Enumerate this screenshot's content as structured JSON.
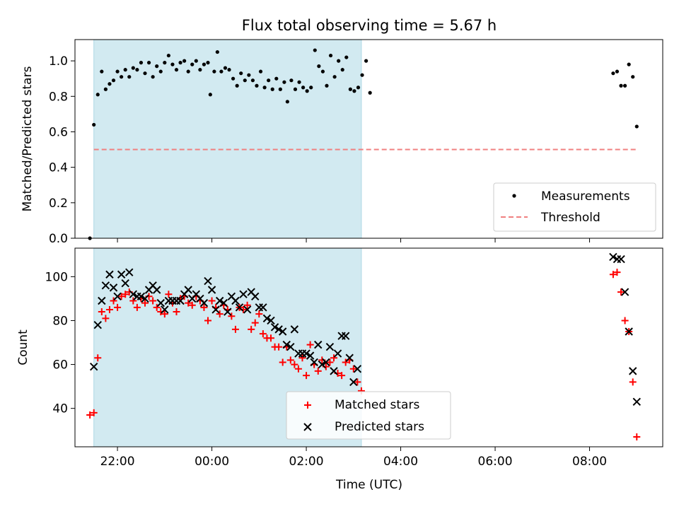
{
  "figure": {
    "title": "Flux total observing time = 5.67 h",
    "xlabel": "Time (UTC)"
  },
  "colors": {
    "shade": "#add8e6",
    "threshold": "#f08080",
    "matched": "#ff0000",
    "predicted": "#000000",
    "measurement": "#000000"
  },
  "chart_data": [
    {
      "type": "scatter",
      "panel": "top",
      "ylabel": "Matched/Predicted stars",
      "xlim": [
        21.1,
        9.55
      ],
      "ylim": [
        0.0,
        1.12
      ],
      "yticks": [
        0.0,
        0.2,
        0.4,
        0.6,
        0.8,
        1.0
      ],
      "ytick_labels": [
        "0.0",
        "0.2",
        "0.4",
        "0.6",
        "0.8",
        "1.0"
      ],
      "grid": false,
      "legend_position": "bottom-right",
      "shaded_interval": [
        "21:30",
        "03:10"
      ],
      "threshold": {
        "name": "Threshold",
        "value": 0.5,
        "x_range": [
          "21:30",
          "09:00"
        ]
      },
      "series": [
        {
          "name": "Measurements",
          "points": [
            [
              "21:25",
              0.0
            ],
            [
              "21:30",
              0.64
            ],
            [
              "21:35",
              0.81
            ],
            [
              "21:40",
              0.94
            ],
            [
              "21:45",
              0.84
            ],
            [
              "21:50",
              0.87
            ],
            [
              "21:55",
              0.89
            ],
            [
              "22:00",
              0.94
            ],
            [
              "22:05",
              0.91
            ],
            [
              "22:10",
              0.95
            ],
            [
              "22:15",
              0.91
            ],
            [
              "22:20",
              0.96
            ],
            [
              "22:25",
              0.95
            ],
            [
              "22:30",
              0.99
            ],
            [
              "22:35",
              0.93
            ],
            [
              "22:40",
              0.99
            ],
            [
              "22:45",
              0.91
            ],
            [
              "22:50",
              0.97
            ],
            [
              "22:55",
              0.94
            ],
            [
              "23:00",
              0.99
            ],
            [
              "23:05",
              1.03
            ],
            [
              "23:10",
              0.98
            ],
            [
              "23:15",
              0.95
            ],
            [
              "23:20",
              0.99
            ],
            [
              "23:25",
              1.0
            ],
            [
              "23:30",
              0.94
            ],
            [
              "23:35",
              0.98
            ],
            [
              "23:40",
              1.0
            ],
            [
              "23:45",
              0.95
            ],
            [
              "23:50",
              0.98
            ],
            [
              "23:55",
              0.99
            ],
            [
              "23:58",
              0.81
            ],
            [
              "00:03",
              0.94
            ],
            [
              "00:07",
              1.05
            ],
            [
              "00:12",
              0.94
            ],
            [
              "00:17",
              0.96
            ],
            [
              "00:22",
              0.95
            ],
            [
              "00:27",
              0.9
            ],
            [
              "00:32",
              0.86
            ],
            [
              "00:37",
              0.93
            ],
            [
              "00:42",
              0.89
            ],
            [
              "00:47",
              0.92
            ],
            [
              "00:52",
              0.89
            ],
            [
              "00:57",
              0.86
            ],
            [
              "01:02",
              0.94
            ],
            [
              "01:07",
              0.85
            ],
            [
              "01:12",
              0.89
            ],
            [
              "01:17",
              0.84
            ],
            [
              "01:22",
              0.9
            ],
            [
              "01:27",
              0.84
            ],
            [
              "01:32",
              0.88
            ],
            [
              "01:36",
              0.77
            ],
            [
              "01:41",
              0.89
            ],
            [
              "01:46",
              0.84
            ],
            [
              "01:51",
              0.88
            ],
            [
              "01:56",
              0.85
            ],
            [
              "02:01",
              0.83
            ],
            [
              "02:06",
              0.85
            ],
            [
              "02:11",
              1.06
            ],
            [
              "02:16",
              0.97
            ],
            [
              "02:21",
              0.94
            ],
            [
              "02:26",
              0.86
            ],
            [
              "02:31",
              1.03
            ],
            [
              "02:36",
              0.91
            ],
            [
              "02:41",
              1.0
            ],
            [
              "02:46",
              0.95
            ],
            [
              "02:51",
              1.02
            ],
            [
              "02:56",
              0.84
            ],
            [
              "03:01",
              0.83
            ],
            [
              "03:06",
              0.85
            ],
            [
              "03:11",
              0.92
            ],
            [
              "03:16",
              1.0
            ],
            [
              "03:21",
              0.82
            ],
            [
              "08:30",
              0.93
            ],
            [
              "08:35",
              0.94
            ],
            [
              "08:40",
              0.86
            ],
            [
              "08:45",
              0.86
            ],
            [
              "08:50",
              0.98
            ],
            [
              "08:55",
              0.91
            ],
            [
              "09:00",
              0.63
            ]
          ]
        }
      ]
    },
    {
      "type": "scatter",
      "panel": "bottom",
      "ylabel": "Count",
      "xlabel": "Time (UTC)",
      "xlim": [
        21.1,
        9.55
      ],
      "ylim": [
        22.5,
        113
      ],
      "yticks": [
        40,
        60,
        80,
        100
      ],
      "xtick_labels": [
        "22:00",
        "00:00",
        "02:00",
        "04:00",
        "06:00",
        "08:00"
      ],
      "grid": false,
      "legend_position": "bottom-center",
      "shaded_interval": [
        "21:30",
        "03:10"
      ],
      "series": [
        {
          "name": "Matched stars",
          "marker": "+",
          "points": [
            [
              "21:25",
              37
            ],
            [
              "21:30",
              38
            ],
            [
              "21:35",
              63
            ],
            [
              "21:40",
              84
            ],
            [
              "21:45",
              81
            ],
            [
              "21:50",
              85
            ],
            [
              "21:55",
              89
            ],
            [
              "22:00",
              86
            ],
            [
              "22:05",
              91
            ],
            [
              "22:10",
              92
            ],
            [
              "22:15",
              93
            ],
            [
              "22:20",
              89
            ],
            [
              "22:25",
              86
            ],
            [
              "22:30",
              90
            ],
            [
              "22:35",
              88
            ],
            [
              "22:40",
              91
            ],
            [
              "22:45",
              89
            ],
            [
              "22:50",
              86
            ],
            [
              "22:55",
              84
            ],
            [
              "23:00",
              83
            ],
            [
              "23:05",
              92
            ],
            [
              "23:10",
              88
            ],
            [
              "23:15",
              84
            ],
            [
              "23:20",
              90
            ],
            [
              "23:25",
              91
            ],
            [
              "23:30",
              88
            ],
            [
              "23:35",
              87
            ],
            [
              "23:40",
              91
            ],
            [
              "23:45",
              89
            ],
            [
              "23:50",
              86
            ],
            [
              "23:55",
              80
            ],
            [
              "00:00",
              89
            ],
            [
              "00:05",
              86
            ],
            [
              "00:10",
              83
            ],
            [
              "00:15",
              87
            ],
            [
              "00:20",
              85
            ],
            [
              "00:25",
              82
            ],
            [
              "00:30",
              76
            ],
            [
              "00:35",
              86
            ],
            [
              "00:40",
              85
            ],
            [
              "00:45",
              87
            ],
            [
              "00:50",
              76
            ],
            [
              "00:55",
              79
            ],
            [
              "01:00",
              83
            ],
            [
              "01:05",
              74
            ],
            [
              "01:10",
              72
            ],
            [
              "01:15",
              72
            ],
            [
              "01:20",
              68
            ],
            [
              "01:25",
              68
            ],
            [
              "01:30",
              61
            ],
            [
              "01:35",
              68
            ],
            [
              "01:40",
              62
            ],
            [
              "01:45",
              60
            ],
            [
              "01:50",
              58
            ],
            [
              "01:55",
              63
            ],
            [
              "02:00",
              55
            ],
            [
              "02:05",
              69
            ],
            [
              "02:10",
              60
            ],
            [
              "02:15",
              57
            ],
            [
              "02:20",
              62
            ],
            [
              "02:25",
              59
            ],
            [
              "02:30",
              61
            ],
            [
              "02:35",
              63
            ],
            [
              "02:40",
              56
            ],
            [
              "02:45",
              55
            ],
            [
              "02:50",
              61
            ],
            [
              "02:55",
              62
            ],
            [
              "03:00",
              58
            ],
            [
              "03:05",
              52
            ],
            [
              "03:10",
              48
            ],
            [
              "08:30",
              101
            ],
            [
              "08:35",
              102
            ],
            [
              "08:40",
              93
            ],
            [
              "08:45",
              80
            ],
            [
              "08:50",
              75
            ],
            [
              "08:55",
              52
            ],
            [
              "09:00",
              27
            ]
          ]
        },
        {
          "name": "Predicted stars",
          "marker": "x",
          "points": [
            [
              "21:30",
              59
            ],
            [
              "21:35",
              78
            ],
            [
              "21:40",
              89
            ],
            [
              "21:45",
              96
            ],
            [
              "21:50",
              101
            ],
            [
              "21:55",
              95
            ],
            [
              "22:00",
              91
            ],
            [
              "22:05",
              101
            ],
            [
              "22:10",
              97
            ],
            [
              "22:15",
              102
            ],
            [
              "22:20",
              92
            ],
            [
              "22:25",
              91
            ],
            [
              "22:30",
              91
            ],
            [
              "22:35",
              90
            ],
            [
              "22:40",
              94
            ],
            [
              "22:45",
              96
            ],
            [
              "22:50",
              94
            ],
            [
              "22:55",
              88
            ],
            [
              "23:00",
              85
            ],
            [
              "23:05",
              89
            ],
            [
              "23:10",
              89
            ],
            [
              "23:15",
              89
            ],
            [
              "23:20",
              89
            ],
            [
              "23:25",
              92
            ],
            [
              "23:30",
              94
            ],
            [
              "23:35",
              90
            ],
            [
              "23:40",
              92
            ],
            [
              "23:45",
              90
            ],
            [
              "23:50",
              88
            ],
            [
              "23:55",
              98
            ],
            [
              "00:00",
              94
            ],
            [
              "00:05",
              85
            ],
            [
              "00:10",
              89
            ],
            [
              "00:15",
              88
            ],
            [
              "00:20",
              84
            ],
            [
              "00:25",
              91
            ],
            [
              "00:30",
              89
            ],
            [
              "00:35",
              86
            ],
            [
              "00:40",
              92
            ],
            [
              "00:45",
              85
            ],
            [
              "00:50",
              93
            ],
            [
              "00:55",
              91
            ],
            [
              "01:00",
              86
            ],
            [
              "01:05",
              86
            ],
            [
              "01:10",
              81
            ],
            [
              "01:15",
              80
            ],
            [
              "01:20",
              77
            ],
            [
              "01:25",
              76
            ],
            [
              "01:30",
              75
            ],
            [
              "01:35",
              69
            ],
            [
              "01:40",
              68
            ],
            [
              "01:45",
              76
            ],
            [
              "01:50",
              65
            ],
            [
              "01:55",
              65
            ],
            [
              "02:00",
              65
            ],
            [
              "02:05",
              64
            ],
            [
              "02:10",
              61
            ],
            [
              "02:15",
              69
            ],
            [
              "02:20",
              60
            ],
            [
              "02:25",
              61
            ],
            [
              "02:30",
              68
            ],
            [
              "02:35",
              57
            ],
            [
              "02:40",
              65
            ],
            [
              "02:45",
              73
            ],
            [
              "02:50",
              73
            ],
            [
              "02:55",
              63
            ],
            [
              "03:00",
              52
            ],
            [
              "03:05",
              58
            ],
            [
              "08:30",
              109
            ],
            [
              "08:35",
              108
            ],
            [
              "08:40",
              108
            ],
            [
              "08:45",
              93
            ],
            [
              "08:50",
              75
            ],
            [
              "08:55",
              57
            ],
            [
              "09:00",
              43
            ]
          ]
        }
      ]
    }
  ]
}
